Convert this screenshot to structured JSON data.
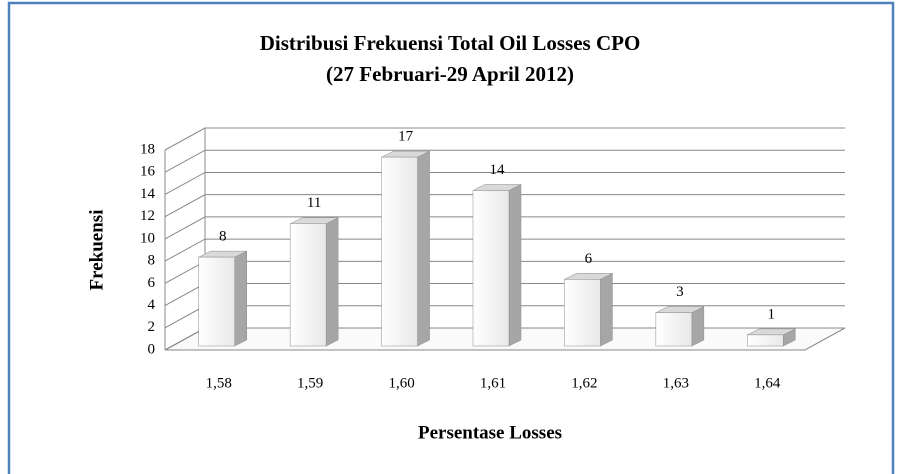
{
  "chart_data": {
    "type": "bar",
    "title": "Distribusi Frekuensi Total Oil Losses CPO",
    "subtitle": "(27 Februari-29 April 2012)",
    "x_label": "Persentase Losses",
    "y_label": "Frekuensi",
    "categories": [
      "1,58",
      "1,59",
      "1,60",
      "1,61",
      "1,62",
      "1,63",
      "1,64"
    ],
    "values": [
      8,
      11,
      17,
      14,
      6,
      3,
      1
    ],
    "ylim": [
      0,
      18
    ],
    "yticks": [
      0,
      2,
      4,
      6,
      8,
      10,
      12,
      14,
      16,
      18
    ],
    "grid": true,
    "color": "#f2f2f2"
  }
}
